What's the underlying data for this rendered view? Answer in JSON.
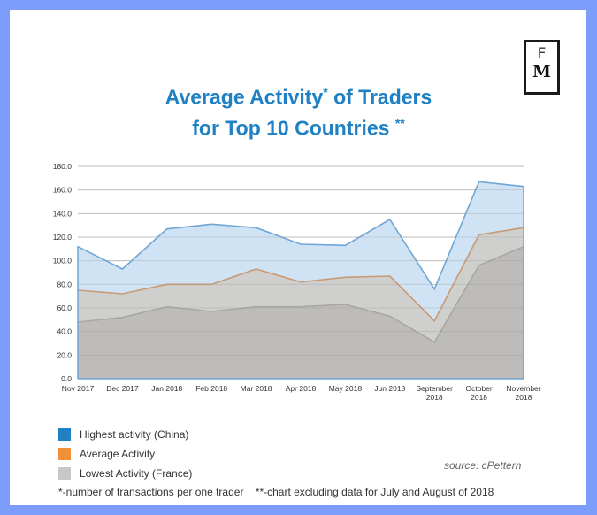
{
  "logo": {
    "text": "FM",
    "letter_top": "F",
    "letter_bottom": "M"
  },
  "title": {
    "line1": "Average Activity",
    "line1_mark": "*",
    "line1_rest": " of Traders",
    "line2": "for Top 10 Countries ",
    "line2_mark": "**"
  },
  "chart_data": {
    "type": "area",
    "title": "Average Activity* of Traders for Top 10 Countries **",
    "categories": [
      "Nov 2017",
      "Dec 2017",
      "Jan 2018",
      "Feb 2018",
      "Mar 2018",
      "Apr 2018",
      "May 2018",
      "Jun 2018",
      "September 2018",
      "October 2018",
      "November 2018"
    ],
    "yticks": [
      "0.0",
      "20.0",
      "40.0",
      "60.0",
      "80.0",
      "100.0",
      "120.0",
      "140.0",
      "160.0",
      "180.0"
    ],
    "ylim": [
      0,
      180
    ],
    "grid": true,
    "legend_position": "bottom-left",
    "series": [
      {
        "name": "Highest activity (China)",
        "color": "#1f80c4",
        "values": [
          112,
          93,
          127,
          131,
          128,
          114,
          113,
          135,
          76,
          167,
          163
        ]
      },
      {
        "name": "Average Activity",
        "color": "#f0913a",
        "values": [
          75,
          72,
          80,
          80,
          93,
          82,
          86,
          87,
          49,
          122,
          128
        ]
      },
      {
        "name": "Lowest Activity (France)",
        "color": "#c8c8c8",
        "values": [
          48,
          52,
          61,
          57,
          61,
          61,
          63,
          53,
          31,
          96,
          112
        ]
      }
    ]
  },
  "source": "source: cPettern",
  "notes": "*-number of transactions per one trader    **-chart excluding data for July and August of 2018"
}
